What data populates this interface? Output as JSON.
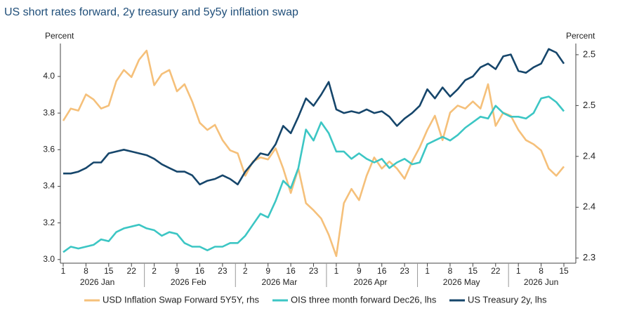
{
  "chart_data": {
    "type": "line",
    "title": "US short rates forward, 2y treasury and 5y5y inflation swap",
    "y_label": "Percent",
    "y2_label": "Percent",
    "categories": [
      "1",
      null,
      null,
      "8",
      null,
      null,
      "15",
      null,
      null,
      "22",
      null,
      null,
      "2",
      null,
      null,
      "9",
      null,
      null,
      "16",
      null,
      null,
      "23",
      null,
      null,
      "2",
      null,
      null,
      "9",
      null,
      null,
      "16",
      null,
      null,
      "23",
      null,
      null,
      "1",
      null,
      null,
      "9",
      null,
      null,
      "16",
      null,
      null,
      "23",
      null,
      null,
      "1",
      null,
      null,
      "8",
      null,
      null,
      "15",
      null,
      null,
      "22",
      null,
      null,
      "1",
      null,
      null,
      "8",
      null,
      null,
      "15"
    ],
    "month_labels": [
      "2026 Jan",
      "2026 Feb",
      "2026 Mar",
      "2026 Apr",
      "2026 May",
      "2026 Jun"
    ],
    "ylim": [
      2.98,
      4.18
    ],
    "yticks": [
      {
        "value": 3,
        "label": "3.0"
      },
      3.2,
      3.4,
      3.6,
      3.8,
      {
        "value": 4,
        "label": "4.0"
      }
    ],
    "y2lim": [
      2.295,
      2.511
    ],
    "y2ticks": [
      2.3,
      {
        "value": 2.35,
        "label": "2.4"
      },
      2.4,
      {
        "value": 2.45,
        "label": "2.5"
      },
      2.5
    ],
    "series": [
      {
        "name": "USD Inflation Swap Forward 5Y5Y, rhs",
        "color": "#f5c07a",
        "axis": "y2",
        "values": [
          2.435,
          2.447,
          2.445,
          2.461,
          2.456,
          2.447,
          2.45,
          2.474,
          2.485,
          2.478,
          2.495,
          2.504,
          2.47,
          2.481,
          2.485,
          2.464,
          2.471,
          2.454,
          2.433,
          2.426,
          2.431,
          2.416,
          2.406,
          2.403,
          2.381,
          2.395,
          2.399,
          2.397,
          2.408,
          2.388,
          2.364,
          2.388,
          2.354,
          2.347,
          2.339,
          2.323,
          2.302,
          2.354,
          2.368,
          2.357,
          2.381,
          2.399,
          2.388,
          2.395,
          2.388,
          2.378,
          2.395,
          2.409,
          2.426,
          2.44,
          2.416,
          2.443,
          2.45,
          2.447,
          2.454,
          2.447,
          2.471,
          2.43,
          2.443,
          2.44,
          2.426,
          2.416,
          2.412,
          2.406,
          2.388,
          2.381,
          2.39
        ]
      },
      {
        "name": "OIS three month forward Dec26, lhs",
        "color": "#3cc6c4",
        "values": [
          3.04,
          3.07,
          3.06,
          3.07,
          3.08,
          3.11,
          3.1,
          3.15,
          3.17,
          3.18,
          3.19,
          3.17,
          3.16,
          3.13,
          3.15,
          3.14,
          3.09,
          3.07,
          3.07,
          3.05,
          3.07,
          3.07,
          3.09,
          3.09,
          3.13,
          3.19,
          3.25,
          3.23,
          3.32,
          3.43,
          3.39,
          3.5,
          3.71,
          3.65,
          3.75,
          3.69,
          3.59,
          3.59,
          3.55,
          3.58,
          3.55,
          3.53,
          3.55,
          3.5,
          3.53,
          3.55,
          3.52,
          3.53,
          3.63,
          3.65,
          3.67,
          3.65,
          3.68,
          3.72,
          3.75,
          3.78,
          3.77,
          3.84,
          3.8,
          3.78,
          3.78,
          3.77,
          3.8,
          3.88,
          3.89,
          3.86,
          3.81
        ]
      },
      {
        "name": "US Treasury 2y, lhs",
        "color": "#16466b",
        "values": [
          3.47,
          3.47,
          3.48,
          3.5,
          3.53,
          3.53,
          3.58,
          3.59,
          3.6,
          3.59,
          3.58,
          3.57,
          3.55,
          3.52,
          3.5,
          3.48,
          3.48,
          3.46,
          3.41,
          3.43,
          3.44,
          3.46,
          3.44,
          3.41,
          3.48,
          3.53,
          3.58,
          3.57,
          3.63,
          3.73,
          3.69,
          3.78,
          3.88,
          3.84,
          3.9,
          3.97,
          3.82,
          3.8,
          3.81,
          3.8,
          3.82,
          3.8,
          3.81,
          3.78,
          3.73,
          3.77,
          3.8,
          3.84,
          3.93,
          3.88,
          3.94,
          3.89,
          3.93,
          3.98,
          4.0,
          4.05,
          4.07,
          4.04,
          4.11,
          4.12,
          4.03,
          4.02,
          4.05,
          4.07,
          4.15,
          4.13,
          4.07
        ]
      }
    ]
  }
}
